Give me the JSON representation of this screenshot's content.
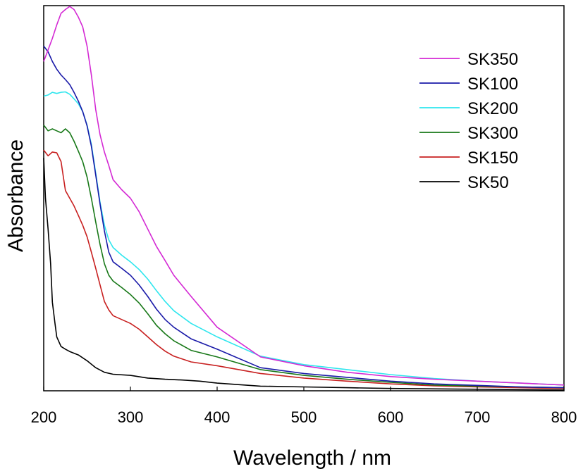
{
  "chart_data": {
    "type": "line",
    "title": "",
    "xlabel": "Wavelength / nm",
    "ylabel": "Absorbance",
    "xlim": [
      200,
      800
    ],
    "ylim": [
      0,
      1
    ],
    "x_ticks": [
      200,
      300,
      400,
      500,
      600,
      700,
      800
    ],
    "x_tick_labels": [
      "200",
      "300",
      "400",
      "500",
      "600",
      "700",
      "800"
    ],
    "y_ticks_labeled": false,
    "grid": false,
    "legend_position": "top-right",
    "series": [
      {
        "name": "SK350",
        "color": "#d429d4",
        "points": [
          [
            200,
            0.855
          ],
          [
            205,
            0.885
          ],
          [
            210,
            0.915
          ],
          [
            215,
            0.95
          ],
          [
            220,
            0.98
          ],
          [
            225,
            0.99
          ],
          [
            230,
            0.998
          ],
          [
            235,
            0.99
          ],
          [
            240,
            0.97
          ],
          [
            245,
            0.945
          ],
          [
            250,
            0.895
          ],
          [
            255,
            0.82
          ],
          [
            260,
            0.73
          ],
          [
            265,
            0.665
          ],
          [
            270,
            0.62
          ],
          [
            275,
            0.585
          ],
          [
            280,
            0.548
          ],
          [
            290,
            0.522
          ],
          [
            300,
            0.5
          ],
          [
            310,
            0.465
          ],
          [
            320,
            0.42
          ],
          [
            330,
            0.375
          ],
          [
            340,
            0.338
          ],
          [
            350,
            0.3
          ],
          [
            370,
            0.245
          ],
          [
            400,
            0.165
          ],
          [
            450,
            0.088
          ],
          [
            500,
            0.065
          ],
          [
            550,
            0.048
          ],
          [
            600,
            0.037
          ],
          [
            650,
            0.03
          ],
          [
            700,
            0.025
          ],
          [
            750,
            0.02
          ],
          [
            800,
            0.015
          ]
        ]
      },
      {
        "name": "SK100",
        "color": "#1a1aa8",
        "points": [
          [
            200,
            0.895
          ],
          [
            205,
            0.88
          ],
          [
            210,
            0.855
          ],
          [
            215,
            0.835
          ],
          [
            220,
            0.82
          ],
          [
            225,
            0.808
          ],
          [
            230,
            0.795
          ],
          [
            235,
            0.775
          ],
          [
            240,
            0.752
          ],
          [
            245,
            0.725
          ],
          [
            250,
            0.688
          ],
          [
            255,
            0.635
          ],
          [
            260,
            0.56
          ],
          [
            265,
            0.485
          ],
          [
            270,
            0.415
          ],
          [
            275,
            0.36
          ],
          [
            280,
            0.335
          ],
          [
            290,
            0.318
          ],
          [
            300,
            0.3
          ],
          [
            310,
            0.275
          ],
          [
            320,
            0.245
          ],
          [
            330,
            0.212
          ],
          [
            340,
            0.185
          ],
          [
            350,
            0.165
          ],
          [
            370,
            0.135
          ],
          [
            400,
            0.108
          ],
          [
            450,
            0.06
          ],
          [
            500,
            0.045
          ],
          [
            550,
            0.035
          ],
          [
            600,
            0.025
          ],
          [
            650,
            0.018
          ],
          [
            700,
            0.014
          ],
          [
            750,
            0.01
          ],
          [
            800,
            0.008
          ]
        ]
      },
      {
        "name": "SK200",
        "color": "#2ee6ee",
        "points": [
          [
            200,
            0.765
          ],
          [
            205,
            0.768
          ],
          [
            210,
            0.775
          ],
          [
            215,
            0.772
          ],
          [
            220,
            0.775
          ],
          [
            225,
            0.776
          ],
          [
            230,
            0.77
          ],
          [
            235,
            0.758
          ],
          [
            240,
            0.745
          ],
          [
            245,
            0.725
          ],
          [
            250,
            0.69
          ],
          [
            255,
            0.64
          ],
          [
            260,
            0.565
          ],
          [
            265,
            0.49
          ],
          [
            270,
            0.43
          ],
          [
            275,
            0.392
          ],
          [
            280,
            0.372
          ],
          [
            290,
            0.352
          ],
          [
            300,
            0.335
          ],
          [
            310,
            0.315
          ],
          [
            320,
            0.29
          ],
          [
            330,
            0.26
          ],
          [
            340,
            0.232
          ],
          [
            350,
            0.208
          ],
          [
            370,
            0.175
          ],
          [
            400,
            0.14
          ],
          [
            450,
            0.09
          ],
          [
            500,
            0.068
          ],
          [
            550,
            0.055
          ],
          [
            600,
            0.042
          ],
          [
            650,
            0.032
          ],
          [
            700,
            0.025
          ],
          [
            750,
            0.02
          ],
          [
            800,
            0.015
          ]
        ]
      },
      {
        "name": "SK300",
        "color": "#187818",
        "points": [
          [
            200,
            0.69
          ],
          [
            205,
            0.675
          ],
          [
            210,
            0.68
          ],
          [
            215,
            0.675
          ],
          [
            220,
            0.67
          ],
          [
            225,
            0.68
          ],
          [
            230,
            0.67
          ],
          [
            235,
            0.648
          ],
          [
            240,
            0.622
          ],
          [
            245,
            0.595
          ],
          [
            250,
            0.555
          ],
          [
            255,
            0.5
          ],
          [
            260,
            0.438
          ],
          [
            265,
            0.38
          ],
          [
            270,
            0.33
          ],
          [
            275,
            0.3
          ],
          [
            280,
            0.285
          ],
          [
            290,
            0.268
          ],
          [
            300,
            0.25
          ],
          [
            310,
            0.228
          ],
          [
            320,
            0.2
          ],
          [
            330,
            0.17
          ],
          [
            340,
            0.148
          ],
          [
            350,
            0.13
          ],
          [
            370,
            0.105
          ],
          [
            400,
            0.088
          ],
          [
            450,
            0.055
          ],
          [
            500,
            0.04
          ],
          [
            550,
            0.03
          ],
          [
            600,
            0.022
          ],
          [
            650,
            0.015
          ],
          [
            700,
            0.012
          ],
          [
            750,
            0.01
          ],
          [
            800,
            0.008
          ]
        ]
      },
      {
        "name": "SK150",
        "color": "#c82020",
        "points": [
          [
            200,
            0.625
          ],
          [
            205,
            0.61
          ],
          [
            210,
            0.62
          ],
          [
            215,
            0.618
          ],
          [
            220,
            0.595
          ],
          [
            225,
            0.52
          ],
          [
            230,
            0.5
          ],
          [
            235,
            0.48
          ],
          [
            240,
            0.455
          ],
          [
            245,
            0.43
          ],
          [
            250,
            0.4
          ],
          [
            255,
            0.36
          ],
          [
            260,
            0.318
          ],
          [
            265,
            0.275
          ],
          [
            270,
            0.232
          ],
          [
            275,
            0.21
          ],
          [
            280,
            0.195
          ],
          [
            290,
            0.185
          ],
          [
            300,
            0.175
          ],
          [
            310,
            0.16
          ],
          [
            320,
            0.14
          ],
          [
            330,
            0.12
          ],
          [
            340,
            0.103
          ],
          [
            350,
            0.09
          ],
          [
            370,
            0.075
          ],
          [
            400,
            0.065
          ],
          [
            450,
            0.045
          ],
          [
            500,
            0.033
          ],
          [
            550,
            0.025
          ],
          [
            600,
            0.018
          ],
          [
            650,
            0.013
          ],
          [
            700,
            0.01
          ],
          [
            750,
            0.008
          ],
          [
            800,
            0.006
          ]
        ]
      },
      {
        "name": "SK50",
        "color": "#000000",
        "points": [
          [
            200,
            0.605
          ],
          [
            202,
            0.5
          ],
          [
            205,
            0.42
          ],
          [
            208,
            0.33
          ],
          [
            210,
            0.23
          ],
          [
            213,
            0.175
          ],
          [
            215,
            0.14
          ],
          [
            220,
            0.115
          ],
          [
            225,
            0.108
          ],
          [
            230,
            0.102
          ],
          [
            240,
            0.093
          ],
          [
            250,
            0.078
          ],
          [
            260,
            0.06
          ],
          [
            270,
            0.048
          ],
          [
            280,
            0.043
          ],
          [
            300,
            0.04
          ],
          [
            320,
            0.033
          ],
          [
            340,
            0.03
          ],
          [
            360,
            0.028
          ],
          [
            380,
            0.025
          ],
          [
            400,
            0.02
          ],
          [
            450,
            0.012
          ],
          [
            500,
            0.01
          ],
          [
            550,
            0.008
          ],
          [
            600,
            0.006
          ],
          [
            700,
            0.004
          ],
          [
            800,
            0.002
          ]
        ]
      }
    ]
  }
}
